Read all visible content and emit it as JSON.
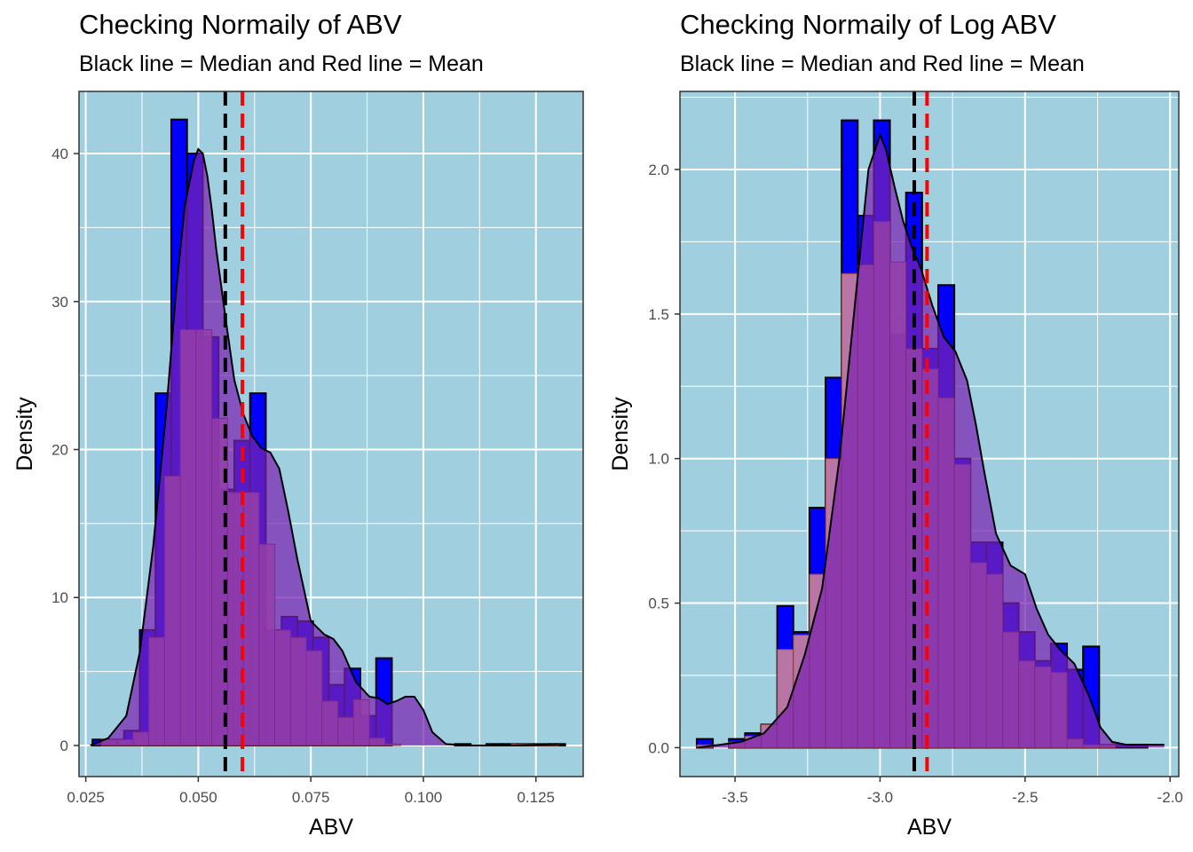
{
  "chart_data": [
    {
      "type": "bar",
      "title": "Checking Normaily of ABV",
      "subtitle": "Black line = Median and Red line = Mean",
      "xlabel": "ABV",
      "ylabel": "Density",
      "xlim": [
        0.0235,
        0.1355
      ],
      "ylim": [
        -2.1,
        44.2
      ],
      "xticks": [
        0.025,
        0.05,
        0.075,
        0.1,
        0.125
      ],
      "xtick_labels": [
        "0.025",
        "0.050",
        "0.075",
        "0.100",
        "0.125"
      ],
      "yticks": [
        0,
        10,
        20,
        30,
        40
      ],
      "ytick_labels": [
        "0",
        "10",
        "20",
        "30",
        "40"
      ],
      "grid": true,
      "background": "#a0cfe0",
      "median": 0.056,
      "mean": 0.0598,
      "histogram_series": {
        "name": "histogram",
        "color": "#0000ff",
        "x_start": 0.0265,
        "bin_width": 0.0035,
        "values": [
          0.4,
          0.4,
          1.0,
          7.8,
          23.8,
          42.3,
          40.0,
          27.6,
          17.3,
          20.6,
          23.8,
          7.8,
          8.7,
          8.4,
          7.3,
          4.1,
          5.2,
          2.0,
          5.9,
          0,
          0,
          0,
          0,
          0.1,
          0,
          0.1,
          0.1,
          0.1,
          0.1,
          0.1
        ]
      },
      "overlay_series": {
        "name": "overlay histogram",
        "color": "#d98a96",
        "x_start": 0.0285,
        "bin_width": 0.0035,
        "values": [
          0.4,
          0.4,
          0.9,
          7.3,
          18.2,
          28.1,
          28.1,
          22.1,
          17.1,
          17.1,
          13.6,
          7.8,
          7.3,
          6.4,
          3.0,
          1.9,
          3.1,
          0.5,
          0.1,
          0,
          0,
          0,
          0,
          0,
          0,
          0,
          0.1,
          0.1,
          0.1
        ]
      },
      "density_series": {
        "name": "density curve",
        "color": "#7a22b0",
        "x": [
          0.026,
          0.03,
          0.034,
          0.037,
          0.04,
          0.043,
          0.045,
          0.047,
          0.049,
          0.05,
          0.051,
          0.052,
          0.053,
          0.054,
          0.056,
          0.058,
          0.06,
          0.062,
          0.064,
          0.066,
          0.068,
          0.07,
          0.072,
          0.075,
          0.078,
          0.08,
          0.082,
          0.085,
          0.088,
          0.09,
          0.092,
          0.094,
          0.096,
          0.098,
          0.1,
          0.102,
          0.105,
          0.11,
          0.12,
          0.13
        ],
        "y": [
          0,
          0.5,
          2.0,
          6.3,
          13.5,
          23.0,
          30.5,
          36.5,
          39.5,
          40.3,
          40.0,
          38.5,
          36.2,
          33.5,
          29.0,
          24.7,
          22.4,
          20.9,
          20.1,
          19.8,
          18.7,
          15.8,
          12.6,
          8.4,
          7.5,
          7.2,
          6.4,
          4.3,
          3.3,
          3.2,
          2.8,
          3.0,
          3.3,
          3.3,
          2.4,
          0.9,
          0.1,
          0,
          0,
          0.1
        ]
      }
    },
    {
      "type": "bar",
      "title": "Checking Normaily of Log ABV",
      "subtitle": "Black line = Median and Red line = Mean",
      "xlabel": "ABV",
      "ylabel": "Density",
      "xlim": [
        -3.69,
        -1.97
      ],
      "ylim": [
        -0.1,
        2.27
      ],
      "xticks": [
        -3.5,
        -3.0,
        -2.5,
        -2.0
      ],
      "xtick_labels": [
        "-3.5",
        "-3.0",
        "-2.5",
        "-2.0"
      ],
      "yticks": [
        0,
        0.5,
        1.0,
        1.5,
        2.0
      ],
      "ytick_labels": [
        "0.0",
        "0.5",
        "1.0",
        "1.5",
        "2.0"
      ],
      "grid": true,
      "background": "#a0cfe0",
      "median": -2.882,
      "mean": -2.838,
      "histogram_series": {
        "name": "histogram",
        "color": "#0000ff",
        "x_start": -3.632,
        "bin_width": 0.0555,
        "values": [
          0.03,
          0,
          0.03,
          0.05,
          0.08,
          0.49,
          0.4,
          0.83,
          1.28,
          2.17,
          1.84,
          2.17,
          1.43,
          1.92,
          1.38,
          1.6,
          1.0,
          0.71,
          0.71,
          0.5,
          0.4,
          0.3,
          0.36,
          0.27,
          0.35,
          0.01,
          0.01,
          0.01
        ]
      },
      "overlay_series": {
        "name": "overlay histogram",
        "color": "#d98a96",
        "x_start": -3.632,
        "bin_width": 0.0555,
        "values": [
          0.01,
          0,
          0.02,
          0.04,
          0.08,
          0.34,
          0.39,
          0.6,
          1.0,
          1.64,
          1.67,
          1.82,
          1.68,
          1.38,
          1.31,
          1.21,
          0.98,
          0.64,
          0.6,
          0.4,
          0.3,
          0.28,
          0.26,
          0.03,
          0.01,
          0.01
        ]
      },
      "density_series": {
        "name": "density curve",
        "color": "#7a22b0",
        "x": [
          -3.63,
          -3.55,
          -3.48,
          -3.4,
          -3.32,
          -3.26,
          -3.2,
          -3.14,
          -3.08,
          -3.04,
          -3.0,
          -2.98,
          -2.95,
          -2.92,
          -2.89,
          -2.86,
          -2.82,
          -2.78,
          -2.74,
          -2.7,
          -2.67,
          -2.64,
          -2.6,
          -2.55,
          -2.5,
          -2.46,
          -2.42,
          -2.38,
          -2.33,
          -2.28,
          -2.24,
          -2.2,
          -2.15,
          -2.1,
          -2.02
        ],
        "y": [
          0,
          0.01,
          0.02,
          0.05,
          0.14,
          0.32,
          0.55,
          1.0,
          1.6,
          2.0,
          2.12,
          2.07,
          1.94,
          1.82,
          1.73,
          1.66,
          1.53,
          1.42,
          1.37,
          1.27,
          1.12,
          0.95,
          0.74,
          0.63,
          0.6,
          0.48,
          0.39,
          0.34,
          0.29,
          0.18,
          0.07,
          0.02,
          0.01,
          0.01,
          0.01
        ]
      }
    }
  ]
}
